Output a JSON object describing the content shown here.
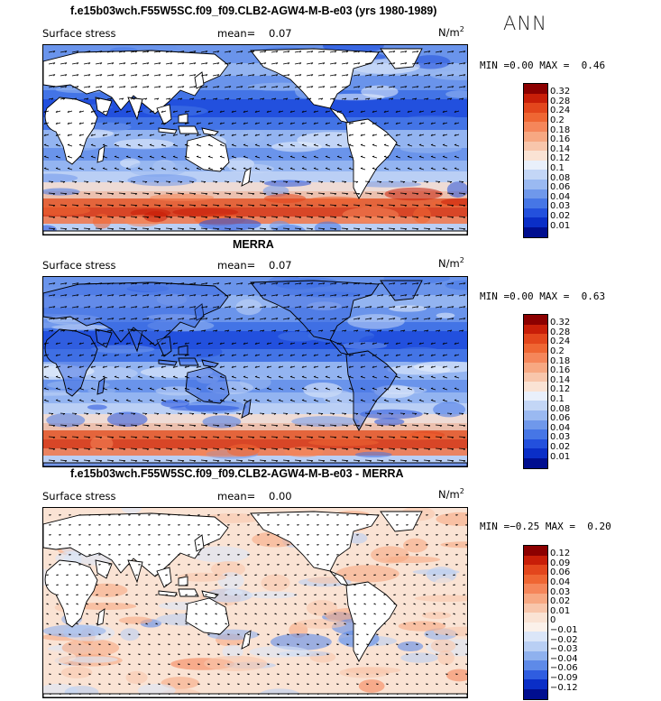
{
  "annotation": "ANN",
  "units_base": "N/m",
  "units_exp": "2",
  "panels": [
    {
      "title": "f.e15b03wch.F55W5SC.f09_f09.CLB2-AGW4-M-B-e03 (yrs 1980-1989)",
      "field_label": "Surface stress",
      "mean_label": "mean=",
      "mean_value": "0.07",
      "min_label": "MIN =",
      "min_value": "0.00",
      "max_label": "MAX =",
      "max_value": "0.46",
      "colorbar": {
        "labels": [
          "0.32",
          "0.28",
          "0.24",
          "0.2",
          "0.18",
          "0.16",
          "0.14",
          "0.12",
          "0.1",
          "0.08",
          "0.06",
          "0.04",
          "0.03",
          "0.02",
          "0.01"
        ],
        "colors": [
          "#8c0000",
          "#c81e08",
          "#e3461c",
          "#ef6633",
          "#f5865a",
          "#f7a882",
          "#f8c6ab",
          "#fae3d4",
          "#e9f0fb",
          "#c3d6f6",
          "#9ab9f1",
          "#6f98eb",
          "#4676e6",
          "#2350dd",
          "#0a2ec7",
          "#000e8f"
        ]
      },
      "style": "field"
    },
    {
      "title": "MERRA",
      "field_label": "Surface stress",
      "mean_label": "mean=",
      "mean_value": "0.07",
      "min_label": "MIN =",
      "min_value": "0.00",
      "max_label": "MAX =",
      "max_value": "0.63",
      "colorbar": {
        "labels": [
          "0.32",
          "0.28",
          "0.24",
          "0.2",
          "0.18",
          "0.16",
          "0.14",
          "0.12",
          "0.1",
          "0.08",
          "0.06",
          "0.04",
          "0.03",
          "0.02",
          "0.01"
        ],
        "colors": [
          "#8c0000",
          "#c81e08",
          "#e3461c",
          "#ef6633",
          "#f5865a",
          "#f7a882",
          "#f8c6ab",
          "#fae3d4",
          "#e9f0fb",
          "#c3d6f6",
          "#9ab9f1",
          "#6f98eb",
          "#4676e6",
          "#2350dd",
          "#0a2ec7",
          "#000e8f"
        ]
      },
      "style": "field"
    },
    {
      "title": "f.e15b03wch.F55W5SC.f09_f09.CLB2-AGW4-M-B-e03 - MERRA",
      "field_label": "Surface stress",
      "mean_label": "mean=",
      "mean_value": "0.00",
      "min_label": "MIN =",
      "min_value": "−0.25",
      "max_label": "MAX =",
      "max_value": "0.20",
      "colorbar": {
        "labels": [
          "0.12",
          "0.09",
          "0.06",
          "0.04",
          "0.03",
          "0.02",
          "0.01",
          "0",
          "−0.01",
          "−0.02",
          "−0.03",
          "−0.04",
          "−0.06",
          "−0.09",
          "−0.12"
        ],
        "colors": [
          "#8c0000",
          "#c81e08",
          "#e3461c",
          "#ef6633",
          "#f5865a",
          "#f7a882",
          "#f8c6ab",
          "#fae3d4",
          "#fbf1ea",
          "#dbe6f8",
          "#b9cff4",
          "#8fb1ee",
          "#5e8ae8",
          "#2f5de0",
          "#0a2ec7",
          "#000e8f"
        ]
      },
      "style": "diff"
    }
  ],
  "chart_data": [
    {
      "type": "heatmap",
      "title": "f.e15b03wch.F55W5SC.f09_f09.CLB2-AGW4-M-B-e03 (yrs 1980-1989)",
      "variable": "Surface stress",
      "units": "N/m2",
      "season": "ANN",
      "mean": 0.07,
      "min": 0.0,
      "max": 0.46,
      "contour_levels": [
        0.01,
        0.02,
        0.03,
        0.04,
        0.06,
        0.08,
        0.1,
        0.12,
        0.14,
        0.16,
        0.18,
        0.2,
        0.24,
        0.28,
        0.32
      ]
    },
    {
      "type": "heatmap",
      "title": "MERRA",
      "variable": "Surface stress",
      "units": "N/m2",
      "season": "ANN",
      "mean": 0.07,
      "min": 0.0,
      "max": 0.63,
      "contour_levels": [
        0.01,
        0.02,
        0.03,
        0.04,
        0.06,
        0.08,
        0.1,
        0.12,
        0.14,
        0.16,
        0.18,
        0.2,
        0.24,
        0.28,
        0.32
      ]
    },
    {
      "type": "heatmap",
      "title": "f.e15b03wch.F55W5SC.f09_f09.CLB2-AGW4-M-B-e03 - MERRA",
      "variable": "Surface stress",
      "units": "N/m2",
      "season": "ANN",
      "mean": 0.0,
      "min": -0.25,
      "max": 0.2,
      "contour_levels": [
        -0.12,
        -0.09,
        -0.06,
        -0.04,
        -0.03,
        -0.02,
        -0.01,
        0,
        0.01,
        0.02,
        0.03,
        0.04,
        0.06,
        0.09,
        0.12
      ]
    }
  ]
}
